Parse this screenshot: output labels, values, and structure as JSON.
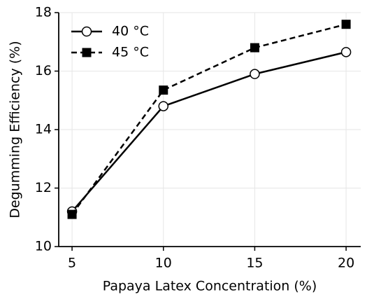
{
  "chart_data": {
    "type": "line",
    "x_label": "Papaya Latex Concentration (%)",
    "y_label": "Degumming Efficiency (%)",
    "x": [
      5,
      10,
      15,
      20
    ],
    "series": [
      {
        "name": "40 °C",
        "color": "#000000",
        "marker": "circle",
        "dash": false,
        "values": [
          11.2,
          14.8,
          15.9,
          16.65
        ]
      },
      {
        "name": "45 °C",
        "color": "#000000",
        "marker": "square",
        "dash": true,
        "values": [
          11.1,
          15.35,
          16.8,
          17.6
        ]
      }
    ],
    "xlim": [
      4.27,
      20.8
    ],
    "xticks": [
      5,
      10,
      15,
      20
    ],
    "ylim": [
      10,
      18
    ],
    "yticks": [
      10,
      12,
      14,
      16,
      18
    ],
    "grid": true,
    "legend": "upper left"
  }
}
